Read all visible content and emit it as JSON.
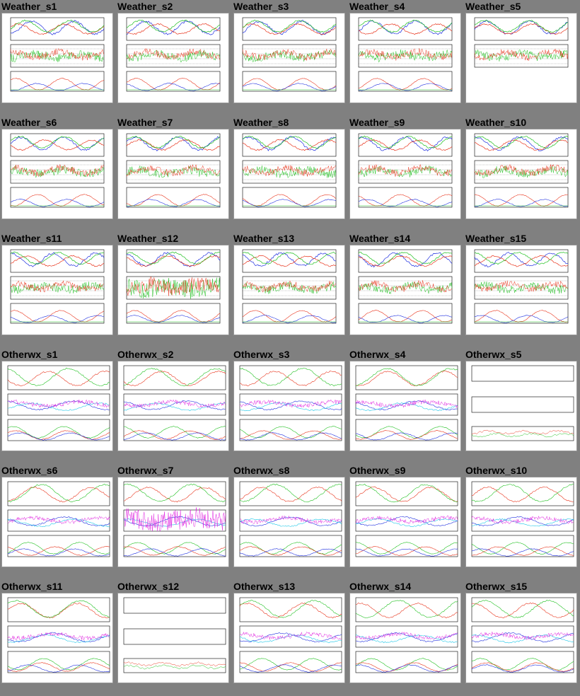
{
  "page": {
    "background": "#808080"
  },
  "plot_colors": {
    "red": "#e8341c",
    "green": "#20c020",
    "blue": "#2030e0",
    "cyan": "#20c8e8",
    "magenta": "#e020e0",
    "axis": "#000000"
  },
  "tiles": [
    {
      "title": "Weather_s1",
      "kind": "weather"
    },
    {
      "title": "Weather_s2",
      "kind": "weather"
    },
    {
      "title": "Weather_s3",
      "kind": "weather"
    },
    {
      "title": "Weather_s4",
      "kind": "weather"
    },
    {
      "title": "Weather_s5",
      "kind": "weather_short"
    },
    {
      "title": "Weather_s6",
      "kind": "weather"
    },
    {
      "title": "Weather_s7",
      "kind": "weather"
    },
    {
      "title": "Weather_s8",
      "kind": "weather"
    },
    {
      "title": "Weather_s9",
      "kind": "weather"
    },
    {
      "title": "Weather_s10",
      "kind": "weather"
    },
    {
      "title": "Weather_s11",
      "kind": "weather"
    },
    {
      "title": "Weather_s12",
      "kind": "weather_noise"
    },
    {
      "title": "Weather_s13",
      "kind": "weather"
    },
    {
      "title": "Weather_s14",
      "kind": "weather"
    },
    {
      "title": "Weather_s15",
      "kind": "weather"
    },
    {
      "title": "Otherwx_s1",
      "kind": "other"
    },
    {
      "title": "Otherwx_s2",
      "kind": "other"
    },
    {
      "title": "Otherwx_s3",
      "kind": "other"
    },
    {
      "title": "Otherwx_s4",
      "kind": "other"
    },
    {
      "title": "Otherwx_s5",
      "kind": "other_empty"
    },
    {
      "title": "Otherwx_s6",
      "kind": "other"
    },
    {
      "title": "Otherwx_s7",
      "kind": "other_noise"
    },
    {
      "title": "Otherwx_s8",
      "kind": "other"
    },
    {
      "title": "Otherwx_s9",
      "kind": "other"
    },
    {
      "title": "Otherwx_s10",
      "kind": "other"
    },
    {
      "title": "Otherwx_s11",
      "kind": "other"
    },
    {
      "title": "Otherwx_s12",
      "kind": "other_empty"
    },
    {
      "title": "Otherwx_s13",
      "kind": "other"
    },
    {
      "title": "Otherwx_s14",
      "kind": "other"
    },
    {
      "title": "Otherwx_s15",
      "kind": "other"
    }
  ]
}
